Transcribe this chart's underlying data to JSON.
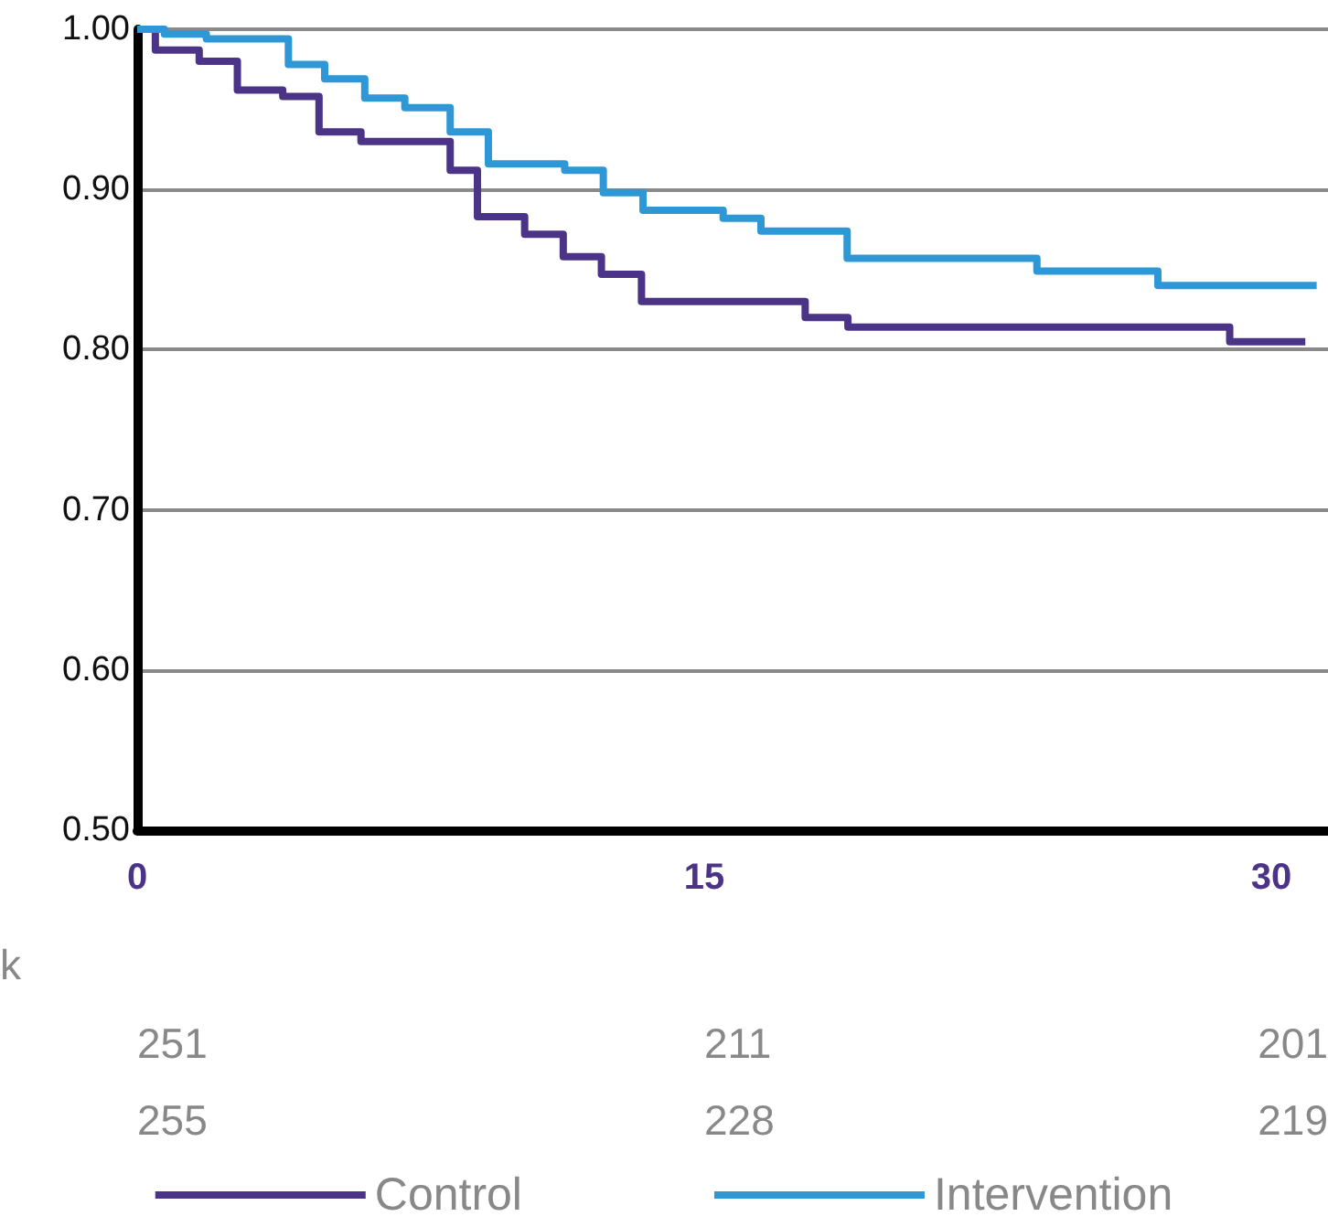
{
  "chart_data": {
    "type": "step",
    "xlim": [
      0,
      31.5
    ],
    "xticks": [
      0,
      15,
      30
    ],
    "ylim": [
      0.5,
      1.0
    ],
    "yticks": [
      {
        "value": 0.5,
        "label": "0.50"
      },
      {
        "value": 0.6,
        "label": "0.60"
      },
      {
        "value": 0.7,
        "label": "0.70"
      },
      {
        "value": 0.8,
        "label": "0.80"
      },
      {
        "value": 0.9,
        "label": "0.90"
      },
      {
        "value": 1.0,
        "label": "1.00"
      }
    ],
    "grid": "y",
    "legend": "bottom",
    "marker": "none",
    "line_style": "solid",
    "series": [
      {
        "name": "Control",
        "color": "#4b3487",
        "x": [
          0,
          0.48,
          1.64,
          2.65,
          3.85,
          4.81,
          5.92,
          8.28,
          9.0,
          10.25,
          11.27,
          12.28,
          13.34,
          17.67,
          18.8,
          28.9,
          30.9
        ],
        "values": [
          1.0,
          0.987,
          0.98,
          0.962,
          0.958,
          0.936,
          0.93,
          0.912,
          0.883,
          0.872,
          0.858,
          0.847,
          0.83,
          0.82,
          0.814,
          0.805,
          0.805
        ]
      },
      {
        "name": "Intervention",
        "color": "#2e97d6",
        "x": [
          0,
          0.72,
          1.83,
          4.0,
          4.96,
          6.02,
          7.08,
          8.28,
          9.29,
          11.31,
          12.33,
          13.38,
          15.5,
          16.5,
          18.78,
          23.8,
          27.0,
          31.2
        ],
        "values": [
          1.0,
          0.997,
          0.994,
          0.978,
          0.969,
          0.957,
          0.951,
          0.936,
          0.916,
          0.912,
          0.898,
          0.887,
          0.882,
          0.874,
          0.857,
          0.849,
          0.84,
          0.84
        ]
      }
    ],
    "annotations": [
      "k",
      "251",
      "211",
      "201",
      "255",
      "228",
      "219"
    ]
  }
}
